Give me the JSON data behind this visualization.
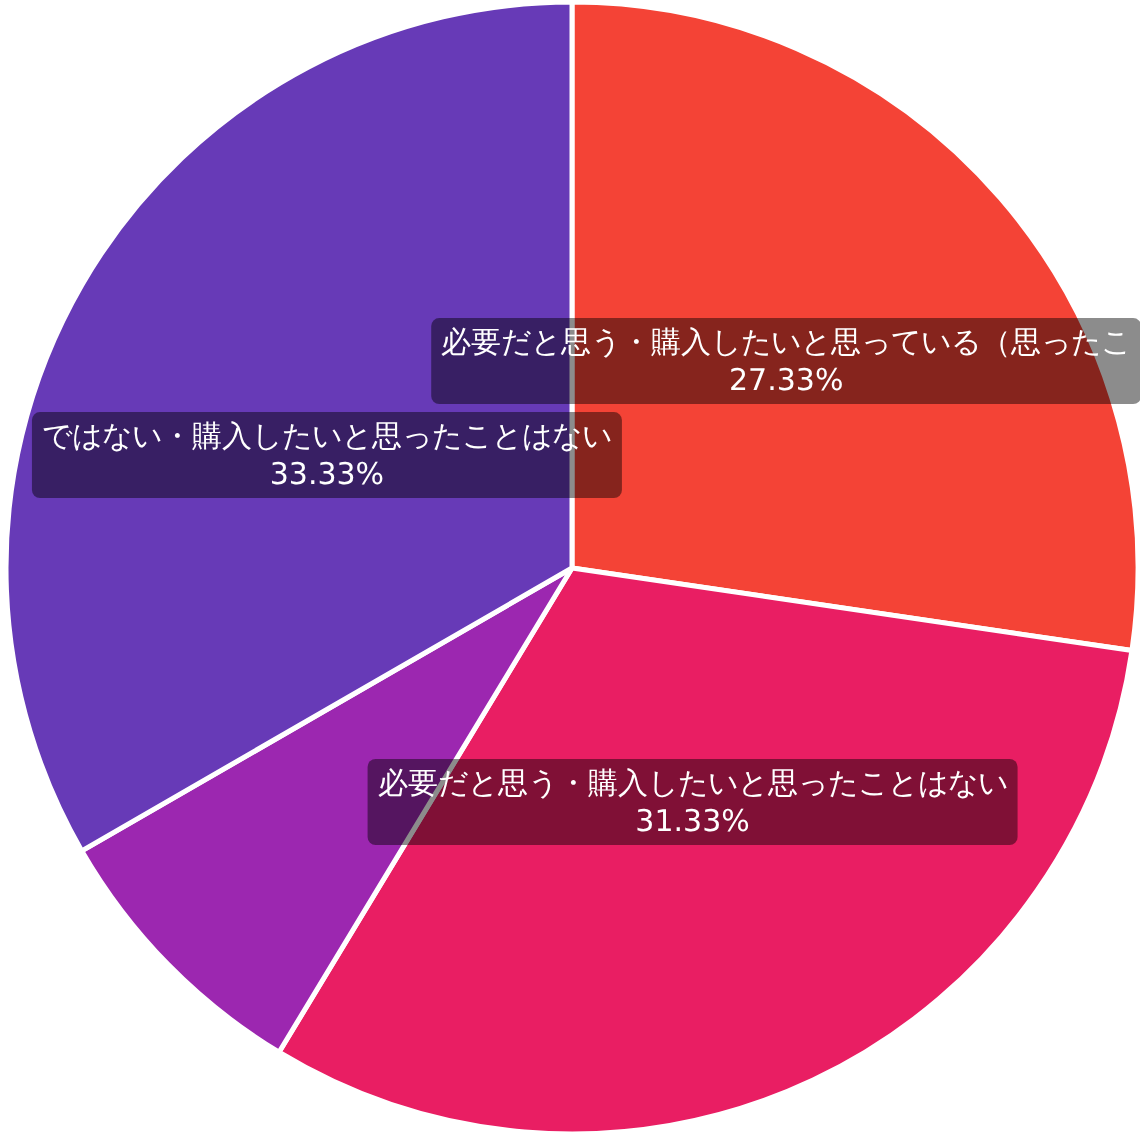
{
  "chart_data": {
    "type": "pie",
    "categories": [
      "必要だと思う・購入したいと思っている（思ったこ",
      "必要だと思う・購入したいと思ったことはない",
      null,
      "ではない・購入したいと思ったことはない"
    ],
    "values": [
      27.33,
      31.33,
      8.01,
      33.33
    ],
    "colors": [
      "#f44336",
      "#e91e63",
      "#9c27b0",
      "#673ab7"
    ],
    "value_labels": [
      "27.33%",
      "31.33%",
      null,
      "33.33%"
    ]
  }
}
